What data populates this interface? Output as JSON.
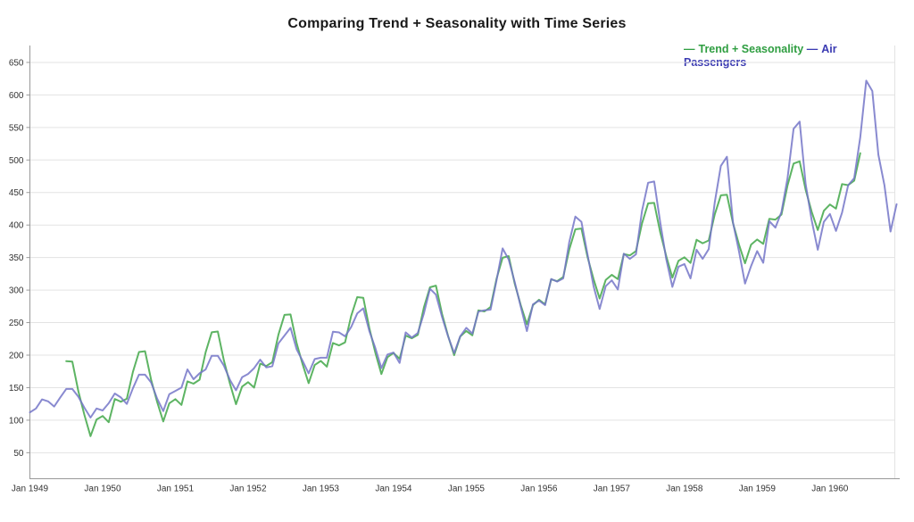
{
  "chart_data": {
    "type": "line",
    "title": "Comparing Trend + Seasonality with Time Series",
    "legend_position": "top-right",
    "legend_marker": "—",
    "grid": "horizontal",
    "x_unit": "month",
    "x_months_total": 144,
    "x_tick_labels": [
      "Jan 1949",
      "Jan 1950",
      "Jan 1951",
      "Jan 1952",
      "Jan 1953",
      "Jan 1954",
      "Jan 1955",
      "Jan 1956",
      "Jan 1957",
      "Jan 1958",
      "Jan 1959",
      "Jan 1960"
    ],
    "y_ticks": [
      50,
      100,
      150,
      200,
      250,
      300,
      350,
      400,
      450,
      500,
      550,
      600,
      650
    ],
    "ylim": [
      10,
      676
    ],
    "colors": {
      "trend_seasonality_line": "#5db463",
      "air_passengers_line": "#7476c8",
      "trend_seasonality_legend": "#2f9e41",
      "air_passengers_legend": "#3a3ab2",
      "gridline": "#e3e3e3",
      "axis": "#999999",
      "tick_text": "#333333"
    },
    "series": [
      {
        "name": "Trend + Seasonality",
        "legend_color": "#2f9e41",
        "line_color": "#5db463",
        "start_month_index": 6,
        "x_start_label": "Jul 1949",
        "x_end_label": "Jun 1960",
        "values": [
          190.6,
          190.1,
          144.5,
          107.9,
          75.4,
          101.1,
          106.5,
          96.9,
          132.7,
          128.4,
          132.9,
          174.2,
          204.8,
          206.0,
          162.2,
          127.8,
          98.0,
          126.1,
          132.4,
          123.4,
          159.6,
          156.1,
          162.2,
          204.5,
          235.1,
          236.4,
          192.0,
          156.2,
          124.5,
          151.6,
          158.4,
          150.0,
          186.8,
          183.3,
          189.1,
          231.2,
          261.9,
          262.6,
          218.7,
          185.6,
          156.9,
          184.8,
          191.1,
          182.3,
          218.7,
          214.9,
          219.6,
          260.1,
          289.2,
          288.2,
          241.5,
          203.9,
          170.9,
          196.9,
          203.3,
          194.3,
          230.0,
          225.9,
          231.1,
          273.2,
          304.3,
          306.8,
          263.7,
          229.6,
          199.9,
          228.5,
          237.1,
          230.5,
          268.9,
          267.2,
          274.0,
          317.4,
          349.6,
          352.2,
          309.8,
          276.5,
          247.4,
          276.8,
          285.2,
          278.2,
          316.4,
          313.7,
          320.0,
          362.5,
          393.4,
          394.7,
          351.0,
          316.9,
          287.0,
          315.5,
          323.5,
          316.8,
          355.4,
          353.3,
          360.0,
          402.6,
          433.3,
          434.0,
          388.7,
          351.8,
          319.2,
          345.0,
          350.5,
          341.7,
          377.3,
          372.0,
          376.2,
          416.4,
          445.7,
          446.5,
          403.0,
          369.7,
          341.1,
          370.0,
          377.8,
          371.0,
          409.6,
          408.3,
          416.0,
          460.9,
          494.5,
          498.0,
          454.2,
          420.3,
          392.3,
          422.0,
          431.6,
          425.2,
          463.0,
          461.3,
          468.2,
          510.4
        ]
      },
      {
        "name": "Air Passengers",
        "legend_color": "#3a3ab2",
        "line_color": "#7476c8",
        "start_month_index": 0,
        "x_start_label": "Jan 1949",
        "x_end_label": "Dec 1960",
        "values": [
          112,
          118,
          132,
          129,
          121,
          135,
          148,
          148,
          136,
          119,
          104,
          118,
          115,
          126,
          141,
          135,
          125,
          149,
          170,
          170,
          158,
          133,
          114,
          140,
          145,
          150,
          178,
          163,
          172,
          178,
          199,
          199,
          184,
          162,
          146,
          166,
          171,
          180,
          193,
          181,
          183,
          218,
          230,
          242,
          209,
          191,
          172,
          194,
          196,
          196,
          236,
          235,
          229,
          243,
          264,
          272,
          237,
          211,
          180,
          201,
          204,
          188,
          235,
          227,
          234,
          264,
          302,
          293,
          259,
          229,
          203,
          229,
          242,
          233,
          267,
          269,
          270,
          315,
          364,
          347,
          312,
          274,
          237,
          278,
          284,
          277,
          317,
          313,
          318,
          374,
          413,
          405,
          355,
          306,
          271,
          306,
          315,
          301,
          356,
          348,
          355,
          422,
          465,
          467,
          404,
          347,
          305,
          336,
          340,
          318,
          362,
          348,
          363,
          435,
          491,
          505,
          404,
          359,
          310,
          337,
          360,
          342,
          406,
          396,
          420,
          472,
          548,
          559,
          463,
          407,
          362,
          405,
          417,
          391,
          419,
          461,
          472,
          535,
          622,
          606,
          508,
          461,
          390,
          432
        ]
      }
    ]
  }
}
